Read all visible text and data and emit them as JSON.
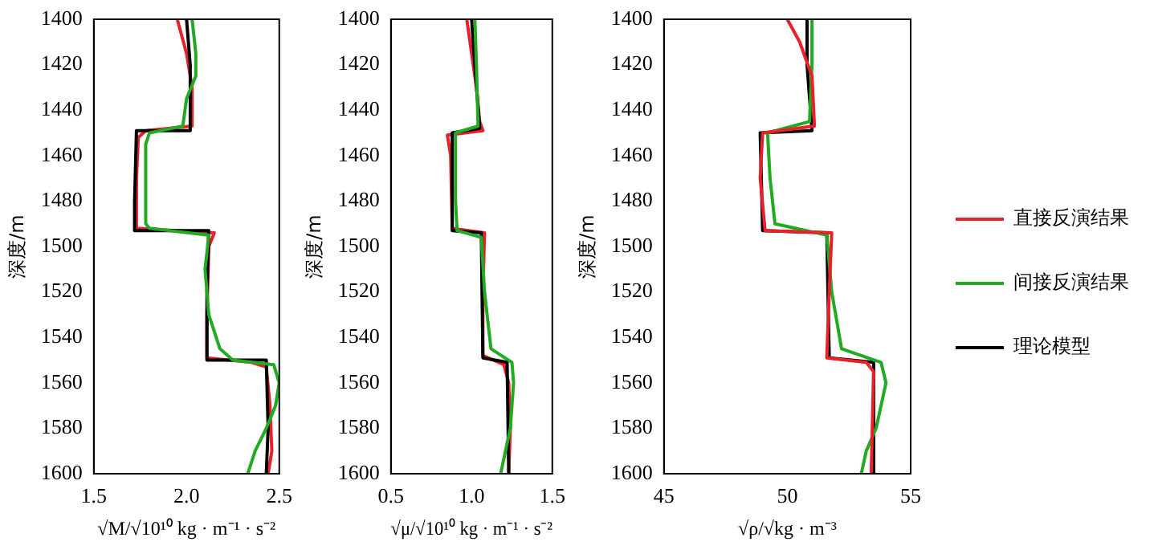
{
  "chart_data": [
    {
      "type": "line",
      "xlabel": "√M/√10¹⁰ kg · m⁻¹ · s⁻²",
      "ylabel": "深度/m",
      "xlim": [
        1.5,
        2.5
      ],
      "xticks": [
        1.5,
        {
          "value": 2,
          "label": "2.0"
        },
        2.5
      ],
      "ylim": [
        1600,
        1400
      ],
      "yticks": [
        1400,
        1420,
        1440,
        1460,
        1480,
        1500,
        1520,
        1540,
        1560,
        1580,
        1600
      ],
      "grid": false,
      "marker": "none",
      "line_style": "solid",
      "legend": false,
      "series": [
        {
          "color": "#22aa22",
          "x": [
            2.03,
            2.05,
            2.05,
            2.0,
            1.98,
            1.8,
            1.78,
            1.78,
            1.8,
            2.12,
            2.1,
            2.12,
            2.18,
            2.25,
            2.47,
            2.5,
            2.48,
            2.43,
            2.37,
            2.33
          ],
          "values": [
            1400,
            1415,
            1425,
            1435,
            1447,
            1450,
            1455,
            1490,
            1492,
            1495,
            1510,
            1530,
            1545,
            1550,
            1552,
            1560,
            1570,
            1580,
            1590,
            1600
          ]
        },
        {
          "color": "#000000",
          "x": [
            2.0,
            2.02,
            2.02,
            1.73,
            1.72,
            1.72,
            2.12,
            2.11,
            2.11,
            2.43,
            2.44,
            2.43
          ],
          "values": [
            1400,
            1420,
            1449,
            1449,
            1480,
            1493,
            1493,
            1520,
            1550,
            1550,
            1580,
            1600
          ]
        },
        {
          "color": "#e8202a",
          "x": [
            1.95,
            2.0,
            2.03,
            2.03,
            1.78,
            1.74,
            1.73,
            1.73,
            2.15,
            2.12,
            2.11,
            2.11,
            2.35,
            2.43,
            2.45,
            2.46,
            2.44
          ],
          "values": [
            1400,
            1415,
            1430,
            1447,
            1449,
            1452,
            1470,
            1492,
            1494,
            1500,
            1530,
            1549,
            1551,
            1553,
            1570,
            1590,
            1600
          ]
        }
      ]
    },
    {
      "type": "line",
      "xlabel": "√μ/√10¹⁰ kg · m⁻¹ · s⁻²",
      "ylabel": "深度/m",
      "xlim": [
        0.5,
        1.5
      ],
      "xticks": [
        0.5,
        {
          "value": 1,
          "label": "1.0"
        },
        1.5
      ],
      "ylim": [
        1600,
        1400
      ],
      "yticks": [
        1400,
        1420,
        1440,
        1460,
        1480,
        1500,
        1520,
        1540,
        1560,
        1580,
        1600
      ],
      "grid": false,
      "marker": "none",
      "line_style": "solid",
      "legend": false,
      "series": [
        {
          "color": "#22aa22",
          "x": [
            1.02,
            1.03,
            1.04,
            0.9,
            0.9,
            0.91,
            1.06,
            1.08,
            1.12,
            1.25,
            1.26,
            1.24,
            1.18
          ],
          "values": [
            1400,
            1420,
            1447,
            1450,
            1480,
            1493,
            1496,
            1520,
            1545,
            1551,
            1560,
            1580,
            1600
          ]
        },
        {
          "color": "#000000",
          "x": [
            1.0,
            1.02,
            1.05,
            0.88,
            0.88,
            1.06,
            1.07,
            1.22,
            1.23
          ],
          "values": [
            1400,
            1420,
            1448,
            1450,
            1493,
            1494,
            1549,
            1551,
            1600
          ]
        },
        {
          "color": "#e8202a",
          "x": [
            0.97,
            1.0,
            1.03,
            1.05,
            1.07,
            0.85,
            0.87,
            0.88,
            1.08,
            1.07,
            1.07,
            1.2,
            1.23,
            1.24,
            1.23
          ],
          "values": [
            1400,
            1415,
            1430,
            1445,
            1449,
            1451,
            1460,
            1492,
            1494,
            1520,
            1548,
            1552,
            1560,
            1580,
            1600
          ]
        }
      ]
    },
    {
      "type": "line",
      "xlabel": "√ρ/√kg · m⁻³",
      "ylabel": "深度/m",
      "xlim": [
        45,
        55
      ],
      "xticks": [
        45,
        50,
        55
      ],
      "ylim": [
        1600,
        1400
      ],
      "yticks": [
        1400,
        1420,
        1440,
        1460,
        1480,
        1500,
        1520,
        1540,
        1560,
        1580,
        1600
      ],
      "grid": false,
      "marker": "none",
      "line_style": "solid",
      "legend": "right",
      "series": [
        {
          "name": "直接反演结果",
          "color": "#e8202a",
          "x": [
            50.0,
            50.5,
            51.0,
            51.1,
            49.0,
            48.9,
            49.1,
            51.8,
            51.7,
            51.6,
            53.2,
            53.5,
            53.4
          ],
          "values": [
            1400,
            1410,
            1425,
            1447,
            1450,
            1470,
            1493,
            1494,
            1520,
            1549,
            1551,
            1555,
            1600
          ]
        },
        {
          "name": "间接反演结果",
          "color": "#22aa22",
          "x": [
            51.0,
            51.0,
            50.9,
            49.2,
            49.3,
            49.5,
            51.6,
            51.8,
            52.2,
            53.8,
            54.0,
            53.6,
            53.2,
            53.0
          ],
          "values": [
            1400,
            1420,
            1445,
            1450,
            1470,
            1490,
            1495,
            1520,
            1545,
            1551,
            1560,
            1580,
            1590,
            1600
          ]
        },
        {
          "name": "理论模型",
          "color": "#000000",
          "x": [
            50.8,
            50.8,
            51.0,
            48.9,
            49.0,
            51.6,
            51.7,
            53.5,
            53.5
          ],
          "values": [
            1400,
            1420,
            1449,
            1450,
            1493,
            1494,
            1549,
            1551,
            1600
          ]
        }
      ]
    }
  ]
}
